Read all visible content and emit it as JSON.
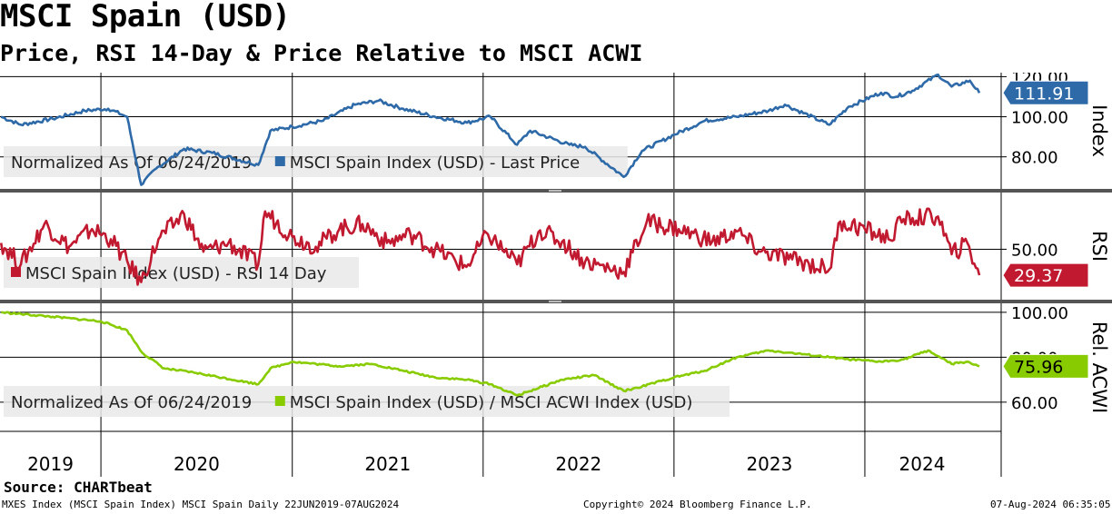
{
  "header": {
    "title": "MSCI Spain (USD)",
    "subtitle": "Price, RSI 14-Day & Price Relative to MSCI ACWI"
  },
  "footer": {
    "source": "Source: CHARTbeat",
    "ticker_info": "MXES Index (MSCI Spain Index) MSCI Spain  Daily 22JUN2019-07AUG2024",
    "copyright": "Copyright© 2024 Bloomberg Finance L.P.",
    "timestamp": "07-Aug-2024 06:35:05"
  },
  "colors": {
    "price": "#2e6aa8",
    "rsi": "#c11a30",
    "relative": "#88cc00",
    "price_badge": "#2e6aa8",
    "rsi_badge": "#c11a30",
    "rel_badge": "#88cc00",
    "divider": "#555555",
    "legend_bg": "#e9e9e9"
  },
  "chart_data": [
    {
      "type": "line",
      "panel": "price",
      "axis_label": "Index",
      "ylim": [
        64,
        122
      ],
      "yticks": [
        80.0,
        100.0,
        120.0
      ],
      "ytick_labels": [
        "80.00",
        "100.00",
        "120.00"
      ],
      "legend_prefix": "Normalized As Of 06/24/2019",
      "legend_placement": "bottom-left",
      "last_value_label": "111.91",
      "series": [
        {
          "name": "MSCI Spain Index (USD) - Last Price",
          "x": [
            "2019-06-24",
            "2019-08-01",
            "2019-10-01",
            "2019-12-01",
            "2020-01-15",
            "2020-02-20",
            "2020-03-18",
            "2020-04-15",
            "2020-06-08",
            "2020-08-01",
            "2020-10-28",
            "2020-11-20",
            "2021-01-01",
            "2021-03-01",
            "2021-05-01",
            "2021-06-15",
            "2021-08-01",
            "2021-10-01",
            "2021-12-01",
            "2022-01-15",
            "2022-03-07",
            "2022-04-01",
            "2022-06-15",
            "2022-07-15",
            "2022-09-27",
            "2022-11-01",
            "2023-01-01",
            "2023-03-01",
            "2023-05-01",
            "2023-07-01",
            "2023-08-01",
            "2023-10-25",
            "2023-12-01",
            "2024-02-01",
            "2024-03-01",
            "2024-04-01",
            "2024-05-20",
            "2024-06-15",
            "2024-07-20",
            "2024-08-07"
          ],
          "values": [
            100,
            96,
            99,
            103,
            104,
            100,
            66,
            74,
            84,
            82,
            76,
            93,
            95,
            98,
            106,
            108,
            104,
            100,
            97,
            100,
            86,
            93,
            86,
            85,
            70,
            83,
            91,
            98,
            100,
            103,
            106,
            96,
            105,
            112,
            110,
            113,
            121,
            115,
            118,
            111.91
          ]
        }
      ]
    },
    {
      "type": "line",
      "panel": "rsi",
      "axis_label": "RSI",
      "ylim": [
        10,
        95
      ],
      "yticks": [
        50.0
      ],
      "ytick_labels": [
        "50.00"
      ],
      "legend_placement": "bottom-left",
      "last_value_label": "29.37",
      "series": [
        {
          "name": "MSCI Spain Index (USD) - RSI 14 Day",
          "x": [
            "2019-06-24",
            "2019-08-01",
            "2019-09-15",
            "2019-11-01",
            "2019-12-15",
            "2020-01-20",
            "2020-03-18",
            "2020-04-20",
            "2020-06-08",
            "2020-07-15",
            "2020-09-01",
            "2020-10-28",
            "2020-11-10",
            "2021-01-01",
            "2021-02-15",
            "2021-04-01",
            "2021-05-15",
            "2021-07-01",
            "2021-08-15",
            "2021-10-01",
            "2021-11-30",
            "2022-01-10",
            "2022-03-07",
            "2022-04-20",
            "2022-06-01",
            "2022-07-15",
            "2022-09-27",
            "2022-11-10",
            "2023-01-10",
            "2023-03-15",
            "2023-05-01",
            "2023-06-15",
            "2023-08-15",
            "2023-10-25",
            "2023-11-15",
            "2024-01-01",
            "2024-02-15",
            "2024-03-15",
            "2024-05-20",
            "2024-06-15",
            "2024-07-15",
            "2024-08-07"
          ],
          "values": [
            55,
            38,
            70,
            52,
            66,
            58,
            24,
            58,
            78,
            48,
            55,
            38,
            80,
            60,
            52,
            66,
            70,
            55,
            62,
            50,
            36,
            62,
            38,
            65,
            56,
            40,
            32,
            72,
            66,
            56,
            64,
            48,
            42,
            34,
            72,
            66,
            58,
            74,
            76,
            46,
            55,
            29.37
          ]
        }
      ]
    },
    {
      "type": "line",
      "panel": "relative",
      "axis_label": "Rel. ACWI",
      "ylim": [
        47,
        104
      ],
      "yticks": [
        60.0,
        80.0,
        100.0
      ],
      "ytick_labels": [
        "60.00",
        "80.00",
        "100.00"
      ],
      "legend_prefix": "Normalized As Of 06/24/2019",
      "legend_placement": "bottom-left",
      "last_value_label": "75.96",
      "series": [
        {
          "name": "MSCI Spain Index (USD) / MSCI ACWI Index (USD)",
          "x": [
            "2019-06-24",
            "2019-10-01",
            "2020-01-01",
            "2020-02-20",
            "2020-03-20",
            "2020-05-01",
            "2020-07-01",
            "2020-10-28",
            "2020-11-20",
            "2021-01-01",
            "2021-04-01",
            "2021-06-01",
            "2021-08-01",
            "2021-10-01",
            "2021-12-01",
            "2022-01-15",
            "2022-03-07",
            "2022-06-01",
            "2022-08-01",
            "2022-09-27",
            "2022-11-01",
            "2023-01-01",
            "2023-03-01",
            "2023-05-01",
            "2023-07-01",
            "2023-10-25",
            "2023-12-01",
            "2024-02-01",
            "2024-03-15",
            "2024-05-01",
            "2024-06-15",
            "2024-07-15",
            "2024-08-07"
          ],
          "values": [
            100,
            98,
            96,
            92,
            82,
            75,
            73,
            68,
            75,
            78,
            76,
            77,
            74,
            71,
            70,
            68,
            63,
            70,
            72,
            65,
            67,
            71,
            74,
            80,
            83,
            80,
            79,
            78,
            79,
            83,
            77,
            78,
            75.96
          ]
        }
      ]
    }
  ],
  "x_axis": {
    "years": [
      "2019",
      "2020",
      "2021",
      "2022",
      "2023",
      "2024"
    ],
    "year_starts": [
      "2020-01-01",
      "2021-01-01",
      "2022-01-01",
      "2023-01-01",
      "2024-01-01"
    ],
    "start": "2019-06-22",
    "end": "2024-08-07"
  }
}
